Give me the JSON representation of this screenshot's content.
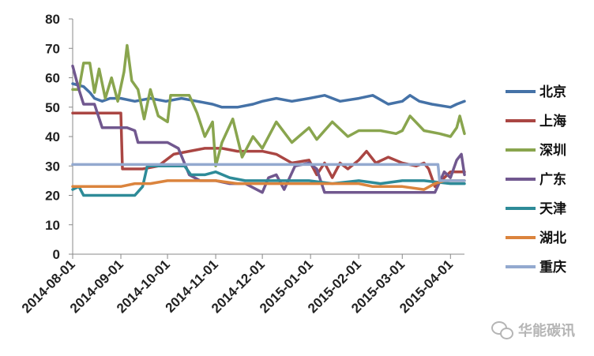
{
  "chart_data": {
    "type": "line",
    "title": "",
    "xlabel": "",
    "ylabel": "",
    "ylim": [
      0,
      80
    ],
    "yticks": [
      0,
      10,
      20,
      30,
      40,
      50,
      60,
      70,
      80
    ],
    "x_tick_labels": [
      "2014-08-01",
      "2014-09-01",
      "2014-10-01",
      "2014-11-01",
      "2014-12-01",
      "2015-01-01",
      "2015-02-01",
      "2015-03-01",
      "2015-04-01"
    ],
    "x_tick_dates": [
      "2014-08-01",
      "2014-09-01",
      "2014-10-01",
      "2014-11-01",
      "2014-12-01",
      "2015-01-01",
      "2015-02-01",
      "2015-03-01",
      "2015-04-01"
    ],
    "xlim": [
      "2014-08-01",
      "2015-04-10"
    ],
    "grid": false,
    "legend_position": "right",
    "series": [
      {
        "name": "北京",
        "color": "#4572A7",
        "points": [
          [
            "2014-08-01",
            58
          ],
          [
            "2014-08-08",
            57
          ],
          [
            "2014-08-12",
            55
          ],
          [
            "2014-08-15",
            53
          ],
          [
            "2014-08-20",
            52
          ],
          [
            "2014-08-25",
            53
          ],
          [
            "2014-09-01",
            53
          ],
          [
            "2014-09-10",
            52
          ],
          [
            "2014-09-20",
            53
          ],
          [
            "2014-09-30",
            52
          ],
          [
            "2014-10-10",
            53
          ],
          [
            "2014-10-20",
            52
          ],
          [
            "2014-10-30",
            51
          ],
          [
            "2014-11-05",
            50
          ],
          [
            "2014-11-15",
            50
          ],
          [
            "2014-11-25",
            51
          ],
          [
            "2014-12-01",
            52
          ],
          [
            "2014-12-10",
            53
          ],
          [
            "2014-12-20",
            52
          ],
          [
            "2014-12-31",
            53
          ],
          [
            "2015-01-10",
            54
          ],
          [
            "2015-01-20",
            52
          ],
          [
            "2015-02-01",
            53
          ],
          [
            "2015-02-10",
            54
          ],
          [
            "2015-02-20",
            51
          ],
          [
            "2015-03-01",
            52
          ],
          [
            "2015-03-06",
            54
          ],
          [
            "2015-03-12",
            52
          ],
          [
            "2015-03-20",
            51
          ],
          [
            "2015-04-01",
            50
          ],
          [
            "2015-04-05",
            51
          ],
          [
            "2015-04-10",
            52
          ]
        ]
      },
      {
        "name": "上海",
        "color": "#AA4643",
        "points": [
          [
            "2014-08-01",
            48
          ],
          [
            "2014-08-15",
            48
          ],
          [
            "2014-09-01",
            48
          ],
          [
            "2014-09-02",
            29
          ],
          [
            "2014-09-15",
            29
          ],
          [
            "2014-09-25",
            30
          ],
          [
            "2014-10-05",
            34
          ],
          [
            "2014-10-15",
            35
          ],
          [
            "2014-10-25",
            36
          ],
          [
            "2014-11-05",
            36
          ],
          [
            "2014-11-15",
            35
          ],
          [
            "2014-11-25",
            35
          ],
          [
            "2014-12-01",
            35
          ],
          [
            "2014-12-10",
            34
          ],
          [
            "2014-12-20",
            31
          ],
          [
            "2014-12-31",
            32
          ],
          [
            "2015-01-05",
            27
          ],
          [
            "2015-01-10",
            31
          ],
          [
            "2015-01-15",
            26
          ],
          [
            "2015-01-20",
            31
          ],
          [
            "2015-01-25",
            29
          ],
          [
            "2015-02-01",
            32
          ],
          [
            "2015-02-06",
            35
          ],
          [
            "2015-02-12",
            31
          ],
          [
            "2015-02-20",
            33
          ],
          [
            "2015-03-01",
            31
          ],
          [
            "2015-03-10",
            30
          ],
          [
            "2015-03-15",
            31
          ],
          [
            "2015-03-18",
            29
          ],
          [
            "2015-03-22",
            23
          ],
          [
            "2015-04-01",
            28
          ],
          [
            "2015-04-10",
            28
          ]
        ]
      },
      {
        "name": "深圳",
        "color": "#89A54E",
        "points": [
          [
            "2014-08-01",
            56
          ],
          [
            "2014-08-05",
            56
          ],
          [
            "2014-08-08",
            65
          ],
          [
            "2014-08-12",
            65
          ],
          [
            "2014-08-15",
            55
          ],
          [
            "2014-08-18",
            63
          ],
          [
            "2014-08-22",
            53
          ],
          [
            "2014-08-26",
            60
          ],
          [
            "2014-08-30",
            52
          ],
          [
            "2014-09-03",
            62
          ],
          [
            "2014-09-05",
            71
          ],
          [
            "2014-09-08",
            59
          ],
          [
            "2014-09-12",
            56
          ],
          [
            "2014-09-16",
            46
          ],
          [
            "2014-09-20",
            56
          ],
          [
            "2014-09-25",
            47
          ],
          [
            "2014-10-01",
            45
          ],
          [
            "2014-10-03",
            54
          ],
          [
            "2014-10-15",
            54
          ],
          [
            "2014-10-20",
            48
          ],
          [
            "2014-10-25",
            40
          ],
          [
            "2014-10-30",
            45
          ],
          [
            "2014-11-01",
            30
          ],
          [
            "2014-11-05",
            38
          ],
          [
            "2014-11-12",
            46
          ],
          [
            "2014-11-18",
            33
          ],
          [
            "2014-11-25",
            40
          ],
          [
            "2014-12-01",
            36
          ],
          [
            "2014-12-10",
            45
          ],
          [
            "2014-12-20",
            38
          ],
          [
            "2014-12-31",
            43
          ],
          [
            "2015-01-05",
            39
          ],
          [
            "2015-01-15",
            45
          ],
          [
            "2015-01-25",
            40
          ],
          [
            "2015-02-01",
            42
          ],
          [
            "2015-02-15",
            42
          ],
          [
            "2015-02-25",
            41
          ],
          [
            "2015-03-01",
            42
          ],
          [
            "2015-03-06",
            47
          ],
          [
            "2015-03-15",
            42
          ],
          [
            "2015-03-25",
            41
          ],
          [
            "2015-04-01",
            40
          ],
          [
            "2015-04-05",
            43
          ],
          [
            "2015-04-07",
            47
          ],
          [
            "2015-04-10",
            41
          ]
        ]
      },
      {
        "name": "广东",
        "color": "#71588F",
        "points": [
          [
            "2014-08-01",
            64
          ],
          [
            "2014-08-05",
            56
          ],
          [
            "2014-08-08",
            51
          ],
          [
            "2014-08-15",
            51
          ],
          [
            "2014-08-20",
            43
          ],
          [
            "2014-09-01",
            43
          ],
          [
            "2014-09-05",
            43
          ],
          [
            "2014-09-10",
            42
          ],
          [
            "2014-09-12",
            38
          ],
          [
            "2014-09-20",
            38
          ],
          [
            "2014-10-01",
            38
          ],
          [
            "2014-10-08",
            36
          ],
          [
            "2014-10-15",
            27
          ],
          [
            "2014-10-22",
            25
          ],
          [
            "2014-11-01",
            25
          ],
          [
            "2014-11-10",
            24
          ],
          [
            "2014-11-20",
            24
          ],
          [
            "2014-12-01",
            21
          ],
          [
            "2014-12-05",
            26
          ],
          [
            "2014-12-10",
            27
          ],
          [
            "2014-12-15",
            22
          ],
          [
            "2014-12-22",
            30
          ],
          [
            "2014-12-31",
            31
          ],
          [
            "2015-01-05",
            29
          ],
          [
            "2015-01-10",
            21
          ],
          [
            "2015-01-20",
            21
          ],
          [
            "2015-02-01",
            21
          ],
          [
            "2015-02-15",
            21
          ],
          [
            "2015-03-01",
            21
          ],
          [
            "2015-03-15",
            21
          ],
          [
            "2015-03-22",
            21
          ],
          [
            "2015-03-28",
            28
          ],
          [
            "2015-04-01",
            26
          ],
          [
            "2015-04-05",
            32
          ],
          [
            "2015-04-08",
            34
          ],
          [
            "2015-04-10",
            27
          ]
        ]
      },
      {
        "name": "天津",
        "color": "#2E8B98",
        "points": [
          [
            "2014-08-01",
            22
          ],
          [
            "2014-08-05",
            23
          ],
          [
            "2014-08-08",
            20
          ],
          [
            "2014-08-20",
            20
          ],
          [
            "2014-09-01",
            20
          ],
          [
            "2014-09-10",
            20
          ],
          [
            "2014-09-15",
            23
          ],
          [
            "2014-09-18",
            30
          ],
          [
            "2014-09-25",
            30
          ],
          [
            "2014-10-05",
            30
          ],
          [
            "2014-10-12",
            30
          ],
          [
            "2014-10-16",
            27
          ],
          [
            "2014-10-25",
            27
          ],
          [
            "2014-11-01",
            28
          ],
          [
            "2014-11-10",
            26
          ],
          [
            "2014-11-20",
            25
          ],
          [
            "2014-12-01",
            25
          ],
          [
            "2014-12-15",
            25
          ],
          [
            "2014-12-31",
            25
          ],
          [
            "2015-01-15",
            24
          ],
          [
            "2015-02-01",
            25
          ],
          [
            "2015-02-15",
            24
          ],
          [
            "2015-03-01",
            25
          ],
          [
            "2015-03-15",
            25
          ],
          [
            "2015-04-01",
            24
          ],
          [
            "2015-04-10",
            24
          ]
        ]
      },
      {
        "name": "湖北",
        "color": "#DB843D",
        "points": [
          [
            "2014-08-01",
            23
          ],
          [
            "2014-08-20",
            23
          ],
          [
            "2014-09-01",
            23
          ],
          [
            "2014-09-10",
            24
          ],
          [
            "2014-09-20",
            24
          ],
          [
            "2014-10-01",
            25
          ],
          [
            "2014-10-15",
            25
          ],
          [
            "2014-11-01",
            25
          ],
          [
            "2014-11-15",
            24
          ],
          [
            "2014-12-01",
            24
          ],
          [
            "2014-12-15",
            24
          ],
          [
            "2015-01-01",
            24
          ],
          [
            "2015-01-15",
            24
          ],
          [
            "2015-02-01",
            24
          ],
          [
            "2015-02-10",
            23
          ],
          [
            "2015-02-20",
            23
          ],
          [
            "2015-03-01",
            23
          ],
          [
            "2015-03-15",
            22
          ],
          [
            "2015-03-22",
            24
          ],
          [
            "2015-03-28",
            25
          ],
          [
            "2015-04-01",
            25
          ],
          [
            "2015-04-10",
            25
          ]
        ]
      },
      {
        "name": "重庆",
        "color": "#93A9CF",
        "points": [
          [
            "2014-08-01",
            30.5
          ],
          [
            "2015-03-24",
            30.5
          ],
          [
            "2015-03-25",
            25
          ],
          [
            "2015-04-10",
            25
          ]
        ]
      }
    ]
  },
  "watermark": {
    "text": "华能碳讯"
  }
}
